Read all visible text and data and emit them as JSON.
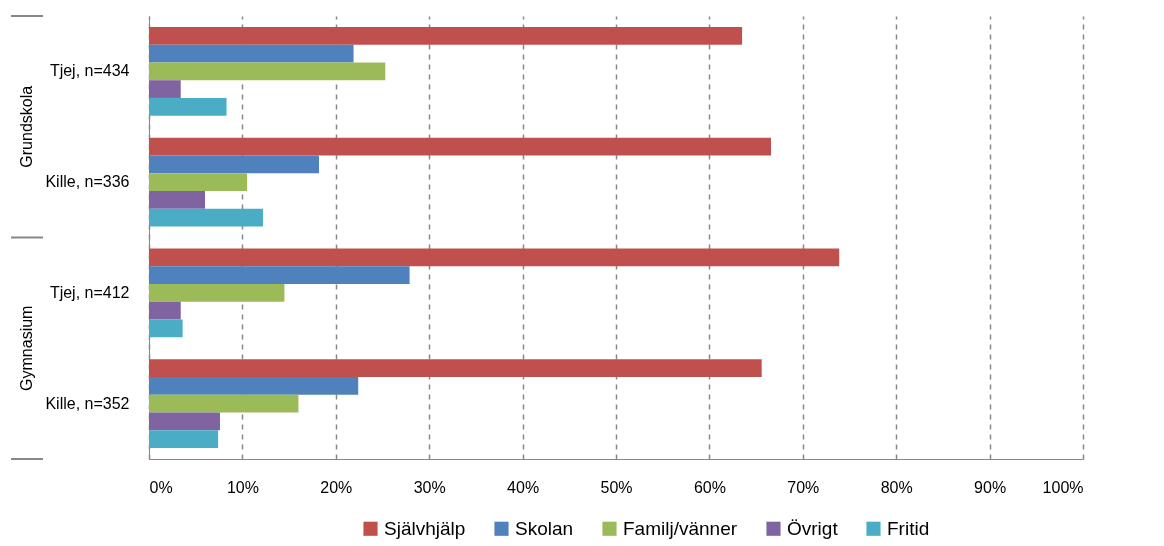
{
  "chart_data": {
    "type": "bar",
    "orientation": "horizontal",
    "categories": [
      "Tjej, n=434",
      "Kille, n=336",
      "Tjej, n=412",
      "Kille, n=352"
    ],
    "annotations": [
      "Grundskola",
      "Gymnasium"
    ],
    "series": [
      {
        "name": "Självhjälp",
        "color": "#c0504d",
        "values": [
          63.5,
          66.6,
          73.9,
          65.6
        ]
      },
      {
        "name": "Skolan",
        "color": "#4f81bd",
        "values": [
          21.9,
          18.2,
          27.9,
          22.4
        ]
      },
      {
        "name": "Familj/vänner",
        "color": "#9bbb59",
        "values": [
          25.3,
          10.5,
          14.5,
          16
        ]
      },
      {
        "name": "Övrigt",
        "color": "#8064a2",
        "values": [
          3.4,
          6.0,
          3.4,
          7.6
        ]
      },
      {
        "name": "Fritid",
        "color": "#4bacc6",
        "values": [
          8.3,
          12.2,
          3.6,
          7.4
        ]
      }
    ],
    "xlim": [
      0,
      100
    ],
    "xticks": [
      {
        "value": 0,
        "label": "0%"
      },
      {
        "value": 10,
        "label": "10%"
      },
      {
        "value": 20,
        "label": "20%"
      },
      {
        "value": 30,
        "label": "30%"
      },
      {
        "value": 40,
        "label": "40%"
      },
      {
        "value": 50,
        "label": "50%"
      },
      {
        "value": 60,
        "label": "60%"
      },
      {
        "value": 70,
        "label": "70%"
      },
      {
        "value": 80,
        "label": "80%"
      },
      {
        "value": 90,
        "label": "90%"
      },
      {
        "value": 100,
        "label": "100%"
      }
    ],
    "grid": "x",
    "legend": "bottom"
  }
}
